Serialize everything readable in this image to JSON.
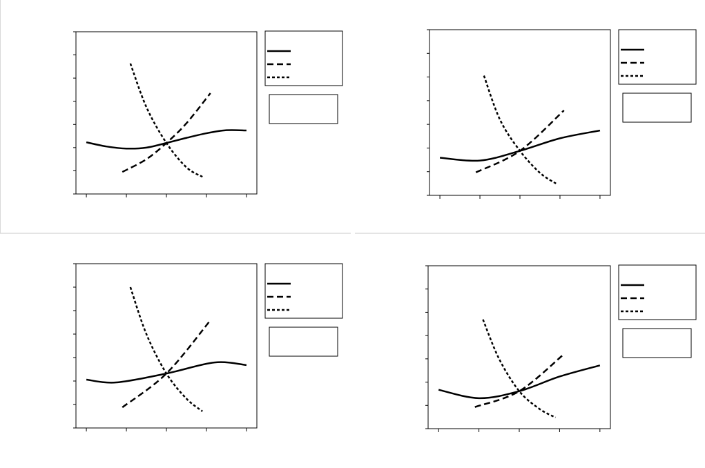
{
  "chart_data": [
    {
      "type": "line",
      "xlim": [
        -0.26,
        4.26
      ],
      "ylim": [
        0,
        7
      ],
      "xticks": [
        0,
        1,
        2,
        3,
        4
      ],
      "yticks": [
        0,
        1,
        2,
        3,
        4,
        5,
        6,
        7
      ],
      "series": [
        {
          "color": "#000000",
          "dash": "solid",
          "x": [
            0,
            0.5,
            1,
            1.5,
            2,
            2.5,
            3,
            3.5,
            4
          ],
          "values": [
            2.23,
            2.05,
            1.96,
            2.0,
            2.2,
            2.42,
            2.62,
            2.75,
            2.74
          ]
        },
        {
          "color": "#000000",
          "dash": "dashed",
          "x": [
            0.9,
            1.5,
            2,
            2.5,
            3.1
          ],
          "values": [
            0.95,
            1.5,
            2.2,
            3.05,
            4.35
          ]
        },
        {
          "color": "#000000",
          "dash": "dotted",
          "x": [
            1.1,
            1.5,
            2,
            2.5,
            2.9
          ],
          "values": [
            5.63,
            3.75,
            2.2,
            1.15,
            0.74
          ]
        }
      ]
    },
    {
      "type": "line",
      "xlim": [
        -0.26,
        4.26
      ],
      "ylim": [
        0,
        7
      ],
      "xticks": [
        0,
        1,
        2,
        3,
        4
      ],
      "yticks": [
        0,
        1,
        2,
        3,
        4,
        5,
        6,
        7
      ],
      "series": [
        {
          "color": "#000000",
          "dash": "solid",
          "x": [
            0,
            1,
            2,
            3,
            4
          ],
          "values": [
            1.59,
            1.47,
            1.88,
            2.41,
            2.74
          ]
        },
        {
          "color": "#000000",
          "dash": "dashed",
          "x": [
            0.9,
            2,
            3.1
          ],
          "values": [
            0.97,
            1.88,
            3.59
          ]
        },
        {
          "color": "#000000",
          "dash": "dotted",
          "x": [
            1.1,
            1.5,
            2,
            2.5,
            2.9
          ],
          "values": [
            5.06,
            3.2,
            1.88,
            0.95,
            0.5
          ]
        }
      ]
    },
    {
      "type": "line",
      "xlim": [
        -0.26,
        4.26
      ],
      "ylim": [
        0,
        7
      ],
      "xticks": [
        0,
        1,
        2,
        3,
        4
      ],
      "yticks": [
        0,
        1,
        2,
        3,
        4,
        5,
        6,
        7
      ],
      "series": [
        {
          "color": "#000000",
          "dash": "solid",
          "x": [
            0,
            0.75,
            2,
            3.2,
            4
          ],
          "values": [
            2.06,
            1.94,
            2.32,
            2.79,
            2.68
          ]
        },
        {
          "color": "#000000",
          "dash": "dashed",
          "x": [
            0.9,
            2,
            3.1
          ],
          "values": [
            0.88,
            2.32,
            4.59
          ]
        },
        {
          "color": "#000000",
          "dash": "dotted",
          "x": [
            1.1,
            1.5,
            2,
            2.5,
            2.9
          ],
          "values": [
            6.0,
            4.0,
            2.32,
            1.25,
            0.71
          ]
        }
      ]
    },
    {
      "type": "line",
      "xlim": [
        -0.26,
        4.26
      ],
      "ylim": [
        0,
        7
      ],
      "xticks": [
        0,
        1,
        2,
        3,
        4
      ],
      "yticks": [
        0,
        1,
        2,
        3,
        4,
        5,
        6,
        7
      ],
      "series": [
        {
          "color": "#000000",
          "dash": "solid",
          "x": [
            0,
            1,
            2,
            3,
            4
          ],
          "values": [
            1.67,
            1.31,
            1.61,
            2.24,
            2.72
          ]
        },
        {
          "color": "#000000",
          "dash": "dashed",
          "x": [
            0.9,
            2,
            3.1
          ],
          "values": [
            0.93,
            1.61,
            3.19
          ]
        },
        {
          "color": "#000000",
          "dash": "dotted",
          "x": [
            1.1,
            1.5,
            2,
            2.5,
            2.9
          ],
          "values": [
            4.69,
            3.0,
            1.61,
            0.85,
            0.48
          ]
        }
      ]
    }
  ]
}
